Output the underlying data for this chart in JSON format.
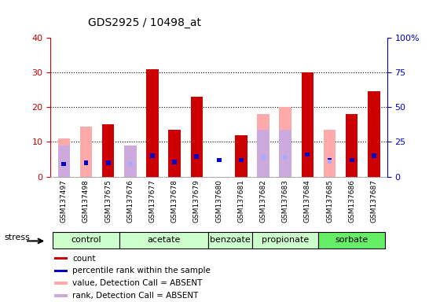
{
  "title": "GDS2925 / 10498_at",
  "samples": [
    "GSM137497",
    "GSM137498",
    "GSM137675",
    "GSM137676",
    "GSM137677",
    "GSM137678",
    "GSM137679",
    "GSM137680",
    "GSM137681",
    "GSM137682",
    "GSM137683",
    "GSM137684",
    "GSM137685",
    "GSM137686",
    "GSM137687"
  ],
  "group_bounds": [
    {
      "start": 0,
      "end": 2,
      "name": "control",
      "color": "#ccffcc"
    },
    {
      "start": 3,
      "end": 6,
      "name": "acetate",
      "color": "#ccffcc"
    },
    {
      "start": 7,
      "end": 8,
      "name": "benzoate",
      "color": "#ccffcc"
    },
    {
      "start": 9,
      "end": 11,
      "name": "propionate",
      "color": "#ccffcc"
    },
    {
      "start": 12,
      "end": 14,
      "name": "sorbate",
      "color": "#66ee66"
    }
  ],
  "count_values": [
    0,
    0,
    15,
    0,
    31,
    13.5,
    23,
    0,
    12,
    0,
    0,
    30,
    0,
    18,
    24.5
  ],
  "value_absent": [
    11,
    14.5,
    0,
    6,
    0,
    0,
    14.5,
    0,
    0,
    18,
    20,
    0,
    13.5,
    0,
    0
  ],
  "rank_absent": [
    9,
    0,
    0,
    9,
    0,
    0,
    14,
    0,
    0,
    13.5,
    13.5,
    0,
    0,
    0,
    0
  ],
  "pct_rank": [
    9,
    10,
    10,
    0,
    15,
    10.5,
    14.5,
    12,
    12,
    0,
    0,
    16,
    12,
    12,
    15
  ],
  "pct_rank_absent": [
    0,
    0,
    0,
    9,
    0,
    0,
    0,
    0,
    0,
    14,
    14,
    0,
    11,
    0,
    0
  ],
  "ylim_left": [
    0,
    40
  ],
  "ylim_right": [
    0,
    100
  ],
  "left_ticks": [
    0,
    10,
    20,
    30,
    40
  ],
  "right_ticks": [
    0,
    25,
    50,
    75,
    100
  ],
  "color_count": "#cc0000",
  "color_value_absent": "#ffaaaa",
  "color_rank_absent": "#ccaadd",
  "color_pct_rank": "#0000cc",
  "color_pct_rank_absent": "#aaaaff",
  "left_axis_color": "#cc0000",
  "right_axis_color": "#0000cc",
  "legend_labels": [
    "count",
    "percentile rank within the sample",
    "value, Detection Call = ABSENT",
    "rank, Detection Call = ABSENT"
  ],
  "stress_label": "stress"
}
